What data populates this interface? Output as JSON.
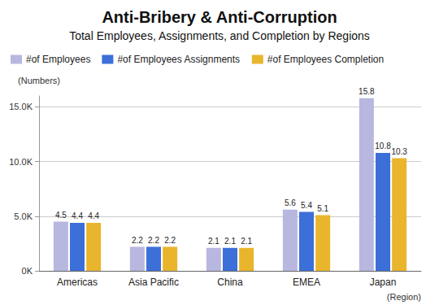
{
  "chart_data": {
    "type": "bar",
    "title": "Anti-Bribery & Anti-Corruption",
    "subtitle": "Total Employees, Assignments, and Completion by Regions",
    "y_label": "(Numbers)",
    "x_label": "(Region)",
    "categories": [
      "Americas",
      "Asia Pacific",
      "China",
      "EMEA",
      "Japan"
    ],
    "series": [
      {
        "name": "#of Employees",
        "color": "#b7b7e0",
        "values": [
          4.5,
          2.2,
          2.1,
          5.6,
          15.8
        ]
      },
      {
        "name": "#of Employees Assignments",
        "color": "#3c6fd8",
        "values": [
          4.4,
          2.2,
          2.1,
          5.4,
          10.8
        ]
      },
      {
        "name": "#of Employees Completion",
        "color": "#e9b52c",
        "values": [
          4.4,
          2.2,
          2.1,
          5.1,
          10.3
        ]
      }
    ],
    "ylim": [
      0,
      16
    ],
    "yticks": [
      {
        "value": 0,
        "label": "0K"
      },
      {
        "value": 5,
        "label": "5.0K"
      },
      {
        "value": 10,
        "label": "10.0K"
      },
      {
        "value": 15,
        "label": "15.0K"
      }
    ],
    "grid": true,
    "legend": "top",
    "data_labels": true
  }
}
